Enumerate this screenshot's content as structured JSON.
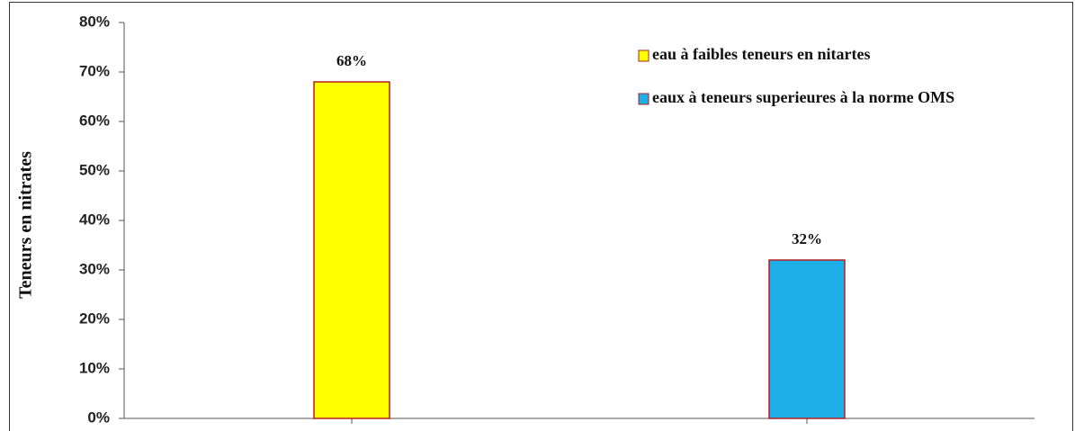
{
  "chart_data": {
    "type": "bar",
    "ylabel": "Teneurs en nitrates",
    "categories": [
      null,
      null
    ],
    "series": [
      {
        "name": "eau à faibles teneurs en nitartes",
        "color": "#ffff00",
        "values": [
          68,
          null
        ],
        "value_labels": [
          "68%",
          null
        ]
      },
      {
        "name": "eaux à teneurs superieures à la norme OMS",
        "color": "#1eaee8",
        "values": [
          null,
          32
        ],
        "value_labels": [
          null,
          "32%"
        ]
      }
    ],
    "ylim": [
      0,
      80
    ],
    "yticks": [
      {
        "value": 0,
        "label": "0%"
      },
      {
        "value": 10,
        "label": "10%"
      },
      {
        "value": 20,
        "label": "20%"
      },
      {
        "value": 30,
        "label": "30%"
      },
      {
        "value": 40,
        "label": "40%"
      },
      {
        "value": 50,
        "label": "50%"
      },
      {
        "value": 60,
        "label": "60%"
      },
      {
        "value": 70,
        "label": "70%"
      },
      {
        "value": 80,
        "label": "80%"
      }
    ],
    "grid": false,
    "legend": "upper right"
  }
}
